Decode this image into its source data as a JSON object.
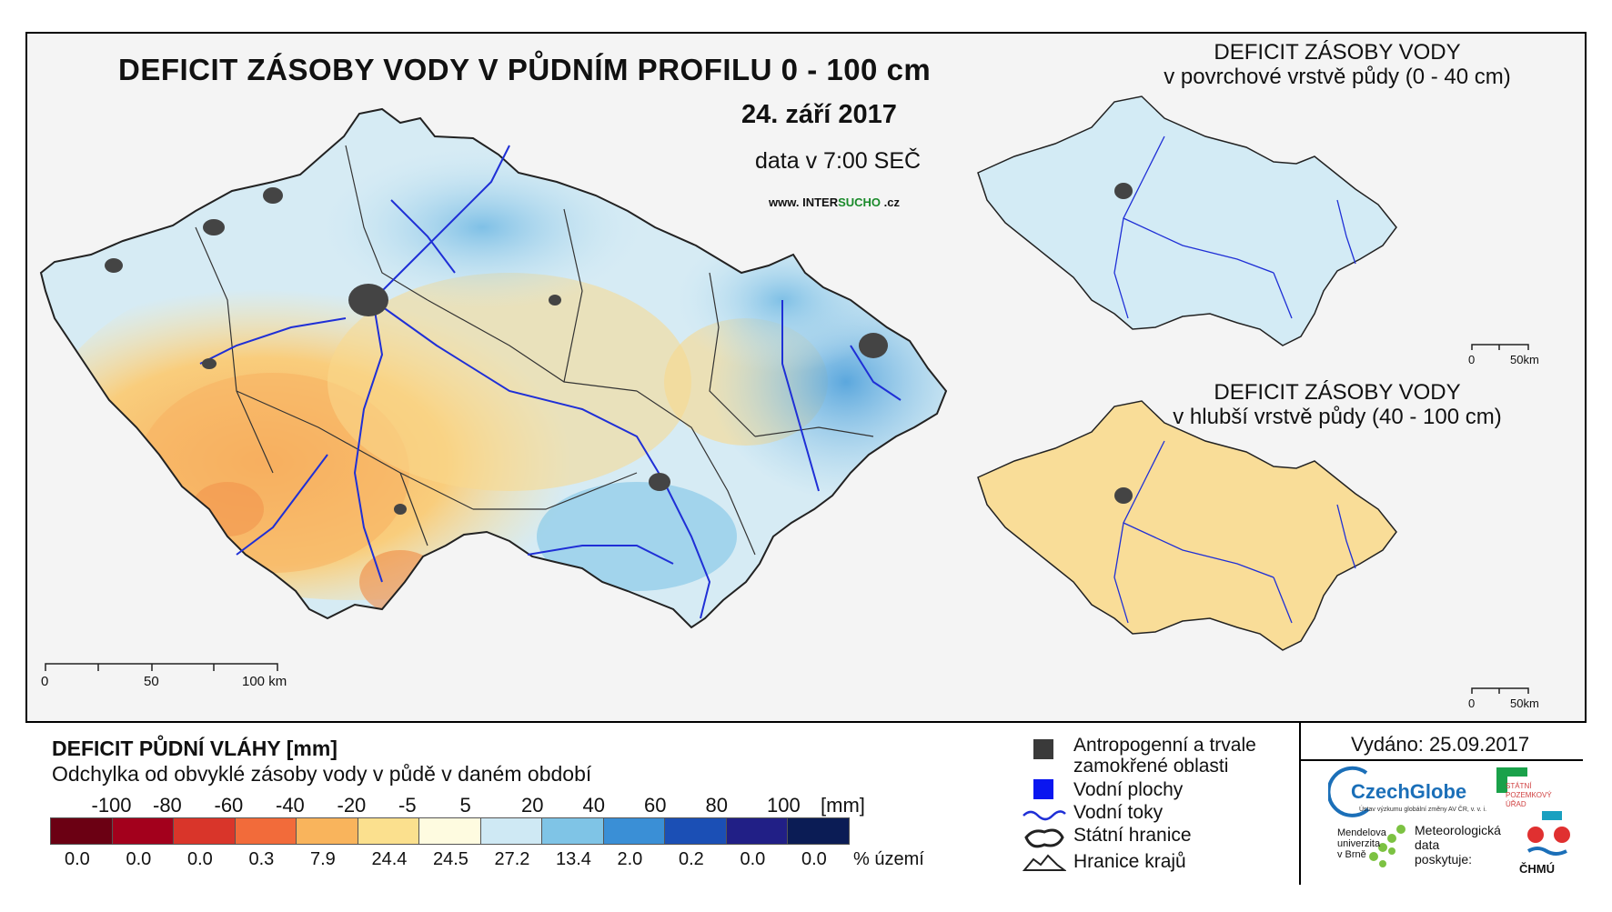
{
  "main": {
    "title": "DEFICIT ZÁSOBY VODY V PŮDNÍM PROFILU 0 - 100 cm",
    "date": "24. září 2017",
    "data_time": "data v 7:00 SEČ",
    "website_prefix": "www. INTER",
    "website_accent": "SUCHO",
    "website_suffix": " .cz",
    "scale_labels": [
      "0",
      "50",
      "100 km"
    ]
  },
  "inset_top": {
    "title_line1": "DEFICIT ZÁSOBY VODY",
    "title_line2": "v povrchové vrstvě půdy (0 - 40 cm)",
    "scale_labels": [
      "0",
      "50km"
    ]
  },
  "inset_bottom": {
    "title_line1": "DEFICIT ZÁSOBY VODY",
    "title_line2": "v hlubší vrstvě půdy (40 - 100 cm)",
    "scale_labels": [
      "0",
      "50km"
    ]
  },
  "legend": {
    "title": "DEFICIT PŮDNÍ VLÁHY [mm]",
    "subtitle": "Odchylka od obvyklé zásoby vody v půdě v daném období",
    "ticks": [
      "-100",
      "-80",
      "-60",
      "-40",
      "-20",
      "-5",
      "5",
      "20",
      "40",
      "60",
      "80",
      "100"
    ],
    "unit": "[mm]",
    "colors": [
      "#6b0013",
      "#a3001c",
      "#d9352a",
      "#f26b3a",
      "#f9b45c",
      "#fbe08e",
      "#fefbe0",
      "#cfe9f4",
      "#7fc4e6",
      "#3a8fd6",
      "#1b4fb5",
      "#211f86",
      "#0b1c55"
    ],
    "percents": [
      "0.0",
      "0.0",
      "0.0",
      "0.3",
      "7.9",
      "24.4",
      "24.5",
      "27.2",
      "13.4",
      "2.0",
      "0.2",
      "0.0",
      "0.0"
    ],
    "percent_label": "% území"
  },
  "symbols": {
    "anthropogenic_line1": "Antropogenní a trvale",
    "anthropogenic_line2": "zamokřené oblasti",
    "water_bodies": "Vodní plochy",
    "rivers": "Vodní toky",
    "state_border": "Státní hranice",
    "region_border": "Hranice krajů"
  },
  "footer": {
    "issued": "Vydáno: 25.09.2017",
    "czechglobe": "CzechGlobe",
    "czechglobe_sub": "Ústav výzkumu globální změny AV ČR, v. v. i.",
    "spu_line1": "STÁTNÍ",
    "spu_line2": "POZEMKOVÝ",
    "spu_line3": "ÚŘAD",
    "mendel_line1": "Mendelova",
    "mendel_line2": "univerzita",
    "mendel_line3": "v Brně",
    "meteo_line1": "Meteorologická",
    "meteo_line2": "data",
    "meteo_line3": "poskytuje:",
    "chmu": "ČHMÚ"
  }
}
